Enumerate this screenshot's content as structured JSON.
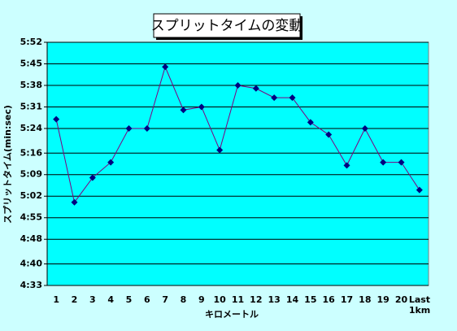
{
  "chart_data": {
    "type": "line",
    "title": "スプリットタイムの変動",
    "x_label": "キロメートル",
    "y_label": "スプリットタイム(min:sec)",
    "categories": [
      "1",
      "2",
      "3",
      "4",
      "5",
      "6",
      "7",
      "8",
      "9",
      "10",
      "11",
      "12",
      "13",
      "14",
      "15",
      "16",
      "17",
      "18",
      "19",
      "20",
      "Last 1km"
    ],
    "series": [
      {
        "name": "スプリットタイム",
        "color": "#000080",
        "line_color": "#800080",
        "values": [
          327,
          300,
          308,
          313,
          324,
          324,
          344,
          330,
          331,
          317,
          338,
          337,
          334,
          334,
          326,
          322,
          312,
          324,
          313,
          313,
          304
        ]
      }
    ],
    "ylim": [
      273,
      352
    ],
    "yticks": [
      {
        "value": 273,
        "label": "4:33"
      },
      {
        "value": 280,
        "label": "4:40"
      },
      {
        "value": 288,
        "label": "4:48"
      },
      {
        "value": 295,
        "label": "4:55"
      },
      {
        "value": 302,
        "label": "5:02"
      },
      {
        "value": 309,
        "label": "5:09"
      },
      {
        "value": 316,
        "label": "5:16"
      },
      {
        "value": 324,
        "label": "5:24"
      },
      {
        "value": 331,
        "label": "5:31"
      },
      {
        "value": 338,
        "label": "5:38"
      },
      {
        "value": 345,
        "label": "5:45"
      },
      {
        "value": 352,
        "label": "5:52"
      }
    ],
    "grid": true,
    "plot_color": "#00ffff"
  }
}
